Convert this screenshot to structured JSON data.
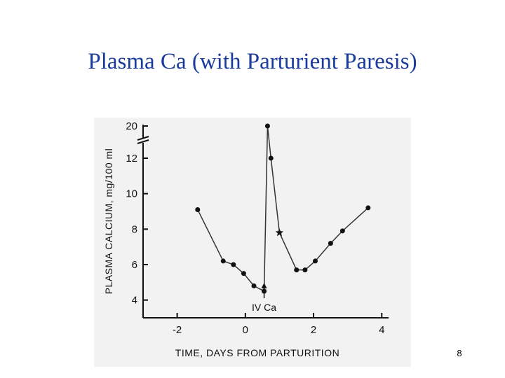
{
  "slide": {
    "title": "Plasma Ca (with Parturient Paresis)",
    "page_number": "8"
  },
  "chart_data": {
    "type": "line",
    "xlabel": "TIME, DAYS FROM PARTURITION",
    "ylabel": "PLASMA CALCIUM, mg/100 ml",
    "xlim": [
      -3,
      4.2
    ],
    "ylim": [
      3,
      20
    ],
    "x_ticks": [
      "-2",
      "0",
      "2",
      "4"
    ],
    "x_tick_values": [
      -2,
      0,
      2,
      4
    ],
    "y_ticks": [
      "4",
      "6",
      "8",
      "10",
      "12",
      "20"
    ],
    "y_tick_values": [
      4,
      6,
      8,
      10,
      12,
      20
    ],
    "y_axis_break": "between 12 and 20",
    "series": [
      {
        "x": [
          -1.4,
          -0.65,
          -0.35,
          -0.05,
          0.25,
          0.55,
          0.65,
          0.75,
          1.0,
          1.5,
          1.75,
          2.05,
          2.5,
          2.85,
          3.6
        ],
        "y": [
          9.1,
          6.2,
          6.0,
          5.5,
          4.8,
          4.5,
          20,
          12,
          7.8,
          5.7,
          5.7,
          6.2,
          7.2,
          7.9,
          9.2
        ],
        "markers": [
          "circle",
          "circle",
          "circle",
          "circle",
          "circle",
          "circle",
          "circle",
          "circle",
          "star",
          "circle",
          "circle",
          "circle",
          "circle",
          "circle",
          "circle"
        ]
      }
    ],
    "annotations": [
      {
        "text": "IV Ca",
        "x": 0.55
      }
    ],
    "colors": {
      "line": "#333333",
      "marker": "#111111",
      "background": "#f2f2f2",
      "title": "#1a3c9e"
    }
  }
}
